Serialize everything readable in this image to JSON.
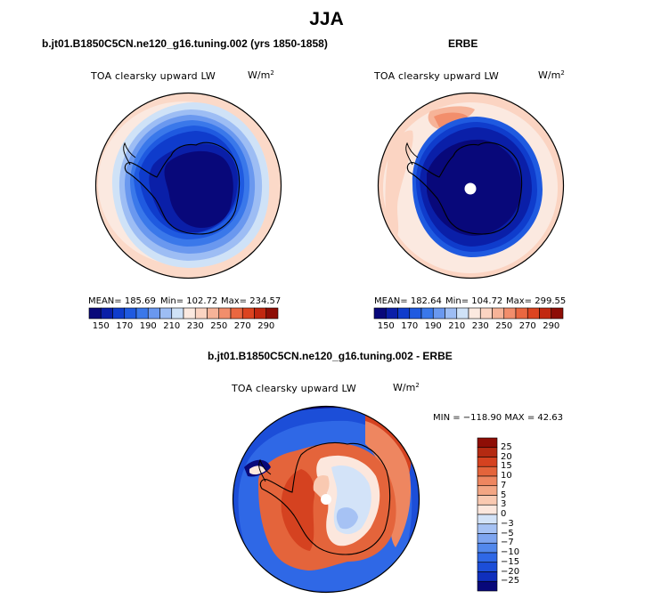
{
  "title": "JJA",
  "panels": [
    {
      "id": "model",
      "title": "b.jt01.B1850C5CN.ne120_g16.tuning.002 (yrs 1850-1858)",
      "variable": "TOA clearsky upward LW",
      "units_base": "W/m",
      "units_exp": "2",
      "stats": {
        "mean_label": "MEAN= 185.69",
        "min_label": "Min= 102.72",
        "max_label": "Max= 234.57"
      }
    },
    {
      "id": "obs",
      "title": "ERBE",
      "variable": "TOA clearsky upward LW",
      "units_base": "W/m",
      "units_exp": "2",
      "stats": {
        "mean_label": "MEAN= 182.64",
        "min_label": "Min= 104.72",
        "max_label": "Max= 299.55"
      }
    },
    {
      "id": "diff",
      "title": "b.jt01.B1850C5CN.ne120_g16.tuning.002 - ERBE",
      "variable": "TOA clearsky upward LW",
      "units_base": "W/m",
      "units_exp": "2",
      "stats": {
        "minmax_label": "MIN = −118.90 MAX =  42.63"
      }
    }
  ],
  "field_colorbar": {
    "colors": [
      "#08087a",
      "#0a1fa8",
      "#0f3ccc",
      "#1f5ae0",
      "#3a78ea",
      "#6a98ef",
      "#9dbdf4",
      "#cfe2f7",
      "#fbe9e0",
      "#fbd4c2",
      "#f6b398",
      "#f28e6c",
      "#ea6740",
      "#dc4420",
      "#c22810",
      "#8e0e06"
    ],
    "tick_labels": [
      "150",
      "170",
      "190",
      "210",
      "230",
      "250",
      "270",
      "290"
    ]
  },
  "diff_colorbar": {
    "colors": [
      "#08087a",
      "#0f2fbd",
      "#1c4ed8",
      "#2f68e6",
      "#5288ec",
      "#7ea5f0",
      "#a6c2f4",
      "#d3e3f8",
      "#fce7dd",
      "#f9c9b1",
      "#f3a684",
      "#ee8660",
      "#e4643b",
      "#d54220",
      "#b42a12",
      "#8e0e06"
    ],
    "tick_labels": [
      "25",
      "20",
      "15",
      "10",
      "7",
      "5",
      "3",
      "0",
      "−3",
      "−5",
      "−7",
      "−10",
      "−15",
      "−20",
      "−25"
    ]
  }
}
